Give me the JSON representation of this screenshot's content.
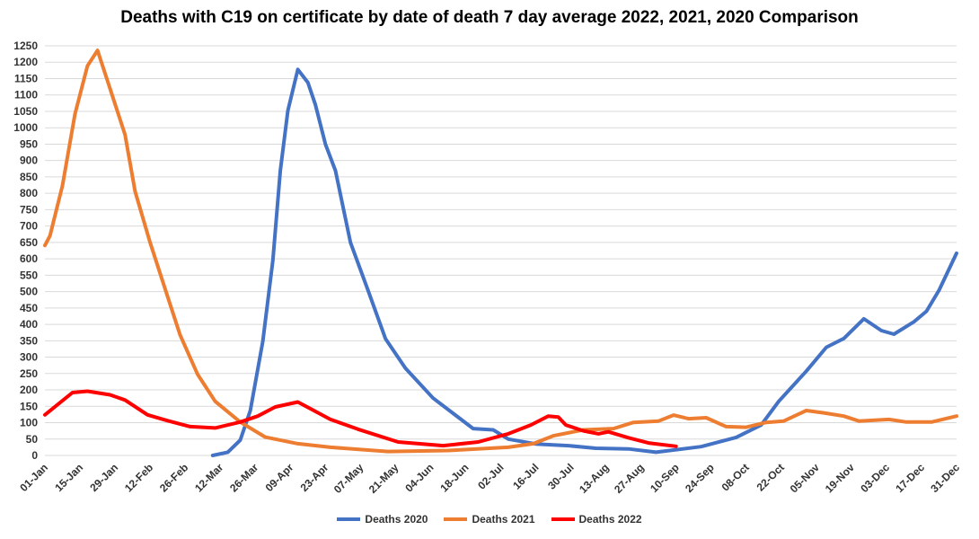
{
  "chart_data": {
    "type": "line",
    "title": "Deaths with C19 on certificate by date of death 7 day average 2022, 2021, 2020 Comparison",
    "xlabel": "",
    "ylabel": "",
    "ylim": [
      0,
      1250
    ],
    "y_ticks": [
      0,
      50,
      100,
      150,
      200,
      250,
      300,
      350,
      400,
      450,
      500,
      550,
      600,
      650,
      700,
      750,
      800,
      850,
      900,
      950,
      1000,
      1050,
      1100,
      1150,
      1200,
      1250
    ],
    "x_ticks": [
      "01-Jan",
      "15-Jan",
      "29-Jan",
      "12-Feb",
      "26-Feb",
      "12-Mar",
      "26-Mar",
      "09-Apr",
      "23-Apr",
      "07-May",
      "21-May",
      "04-Jun",
      "18-Jun",
      "02-Jul",
      "16-Jul",
      "30-Jul",
      "13-Aug",
      "27-Aug",
      "10-Sep",
      "24-Sep",
      "08-Oct",
      "22-Oct",
      "05-Nov",
      "19-Nov",
      "03-Dec",
      "17-Dec",
      "31-Dec"
    ],
    "grid": "horizontal",
    "legend_position": "bottom",
    "series": [
      {
        "name": "Deaths 2020",
        "color": "#4472C4",
        "points": [
          [
            "09-Mar",
            0
          ],
          [
            "15-Mar",
            10
          ],
          [
            "20-Mar",
            47
          ],
          [
            "24-Mar",
            137
          ],
          [
            "29-Mar",
            348
          ],
          [
            "02-Apr",
            595
          ],
          [
            "05-Apr",
            869
          ],
          [
            "08-Apr",
            1052
          ],
          [
            "12-Apr",
            1178
          ],
          [
            "16-Apr",
            1138
          ],
          [
            "19-Apr",
            1070
          ],
          [
            "23-Apr",
            950
          ],
          [
            "27-Apr",
            869
          ],
          [
            "03-May",
            650
          ],
          [
            "10-May",
            504
          ],
          [
            "17-May",
            356
          ],
          [
            "25-May",
            266
          ],
          [
            "05-Jun",
            175
          ],
          [
            "21-Jun",
            82
          ],
          [
            "29-Jun",
            78
          ],
          [
            "05-Jul",
            50
          ],
          [
            "16-Jul",
            35
          ],
          [
            "29-Jul",
            30
          ],
          [
            "09-Aug",
            22
          ],
          [
            "22-Aug",
            20
          ],
          [
            "02-Sep",
            10
          ],
          [
            "20-Sep",
            27
          ],
          [
            "04-Oct",
            55
          ],
          [
            "14-Oct",
            93
          ],
          [
            "21-Oct",
            165
          ],
          [
            "01-Nov",
            257
          ],
          [
            "09-Nov",
            330
          ],
          [
            "16-Nov",
            357
          ],
          [
            "24-Nov",
            417
          ],
          [
            "01-Dec",
            381
          ],
          [
            "06-Dec",
            370
          ],
          [
            "14-Dec",
            408
          ],
          [
            "19-Dec",
            440
          ],
          [
            "24-Dec",
            504
          ],
          [
            "31-Dec",
            617
          ]
        ]
      },
      {
        "name": "Deaths 2021",
        "color": "#ED7D31",
        "points": [
          [
            "01-Jan",
            641
          ],
          [
            "03-Jan",
            670
          ],
          [
            "08-Jan",
            823
          ],
          [
            "13-Jan",
            1042
          ],
          [
            "18-Jan",
            1189
          ],
          [
            "22-Jan",
            1236
          ],
          [
            "26-Jan",
            1143
          ],
          [
            "02-Feb",
            979
          ],
          [
            "06-Feb",
            806
          ],
          [
            "12-Feb",
            650
          ],
          [
            "19-Feb",
            485
          ],
          [
            "24-Feb",
            367
          ],
          [
            "03-Mar",
            247
          ],
          [
            "10-Mar",
            165
          ],
          [
            "20-Mar",
            102
          ],
          [
            "30-Mar",
            56
          ],
          [
            "12-Apr",
            36
          ],
          [
            "25-Apr",
            25
          ],
          [
            "18-May",
            12
          ],
          [
            "11-Jun",
            15
          ],
          [
            "05-Jul",
            25
          ],
          [
            "15-Jul",
            36
          ],
          [
            "23-Jul",
            60
          ],
          [
            "04-Aug",
            78
          ],
          [
            "16-Aug",
            82
          ],
          [
            "24-Aug",
            101
          ],
          [
            "03-Sep",
            105
          ],
          [
            "09-Sep",
            123
          ],
          [
            "15-Sep",
            112
          ],
          [
            "22-Sep",
            115
          ],
          [
            "30-Sep",
            88
          ],
          [
            "08-Oct",
            86
          ],
          [
            "16-Oct",
            101
          ],
          [
            "23-Oct",
            105
          ],
          [
            "01-Nov",
            137
          ],
          [
            "08-Nov",
            130
          ],
          [
            "16-Nov",
            120
          ],
          [
            "22-Nov",
            105
          ],
          [
            "04-Dec",
            110
          ],
          [
            "11-Dec",
            102
          ],
          [
            "21-Dec",
            102
          ],
          [
            "31-Dec",
            120
          ]
        ]
      },
      {
        "name": "Deaths 2022",
        "color": "#FF0000",
        "points": [
          [
            "01-Jan",
            124
          ],
          [
            "12-Jan",
            192
          ],
          [
            "18-Jan",
            196
          ],
          [
            "27-Jan",
            185
          ],
          [
            "02-Feb",
            169
          ],
          [
            "11-Feb",
            124
          ],
          [
            "19-Feb",
            106
          ],
          [
            "28-Feb",
            88
          ],
          [
            "10-Mar",
            84
          ],
          [
            "20-Mar",
            102
          ],
          [
            "27-Mar",
            120
          ],
          [
            "03-Apr",
            148
          ],
          [
            "12-Apr",
            163
          ],
          [
            "25-Apr",
            110
          ],
          [
            "06-May",
            80
          ],
          [
            "22-May",
            41
          ],
          [
            "09-Jun",
            30
          ],
          [
            "23-Jun",
            41
          ],
          [
            "05-Jul",
            66
          ],
          [
            "14-Jul",
            93
          ],
          [
            "21-Jul",
            120
          ],
          [
            "25-Jul",
            117
          ],
          [
            "28-Jul",
            93
          ],
          [
            "04-Aug",
            75
          ],
          [
            "10-Aug",
            66
          ],
          [
            "14-Aug",
            72
          ],
          [
            "22-Aug",
            54
          ],
          [
            "30-Aug",
            38
          ],
          [
            "10-Sep",
            28
          ]
        ]
      }
    ]
  }
}
